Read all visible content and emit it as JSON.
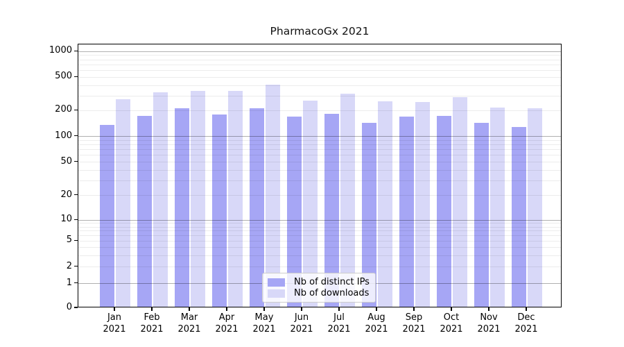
{
  "title": "PharmacoGx 2021",
  "chart_data": {
    "type": "bar",
    "title": "PharmacoGx 2021",
    "xlabel": "",
    "ylabel": "",
    "categories": [
      "Jan 2021",
      "Feb 2021",
      "Mar 2021",
      "Apr 2021",
      "May 2021",
      "Jun 2021",
      "Jul 2021",
      "Aug 2021",
      "Sep 2021",
      "Oct 2021",
      "Nov 2021",
      "Dec 2021"
    ],
    "series": [
      {
        "name": "Nb of distinct IPs",
        "color": "#a6a6f5",
        "values": [
          132,
          167,
          204,
          172,
          204,
          165,
          176,
          139,
          163,
          166,
          139,
          124
        ]
      },
      {
        "name": "Nb of downloads",
        "color": "#d8d8f8",
        "values": [
          265,
          320,
          330,
          333,
          392,
          255,
          305,
          249,
          244,
          279,
          210,
          206
        ]
      }
    ],
    "yticks": [
      0,
      1,
      2,
      5,
      10,
      20,
      50,
      100,
      200,
      500,
      1000
    ],
    "ylim": [
      0,
      1000
    ],
    "yscale": "symlog",
    "grid": "log minor + major gridlines drawn over bars",
    "legend_position": "lower center"
  },
  "colors": {
    "major_grid": "#b0b0b0",
    "minor_grid": "#ececec",
    "axis": "#000000",
    "background": "#ffffff"
  }
}
